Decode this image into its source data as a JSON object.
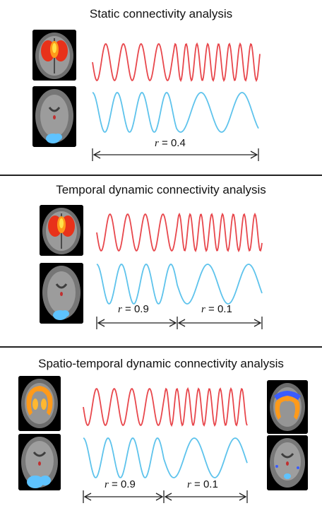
{
  "panels": [
    {
      "title": "Static connectivity analysis",
      "labels": [
        {
          "var": "r",
          "text": " = 0.4"
        }
      ]
    },
    {
      "title": "Temporal dynamic connectivity analysis",
      "labels": [
        {
          "var": "r",
          "text": " = 0.9"
        },
        {
          "var": "r",
          "text": " = 0.1"
        }
      ]
    },
    {
      "title": "Spatio-temporal dynamic connectivity analysis",
      "labels": [
        {
          "var": "r",
          "text": " = 0.9"
        },
        {
          "var": "r",
          "text": " = 0.1"
        }
      ]
    }
  ],
  "colors": {
    "red_signal": "#e8474c",
    "blue_signal": "#5ec3ec",
    "brain_hot": "#ff3b1a",
    "brain_orange": "#ff9a1a",
    "brain_blue": "#4aa8ff"
  }
}
